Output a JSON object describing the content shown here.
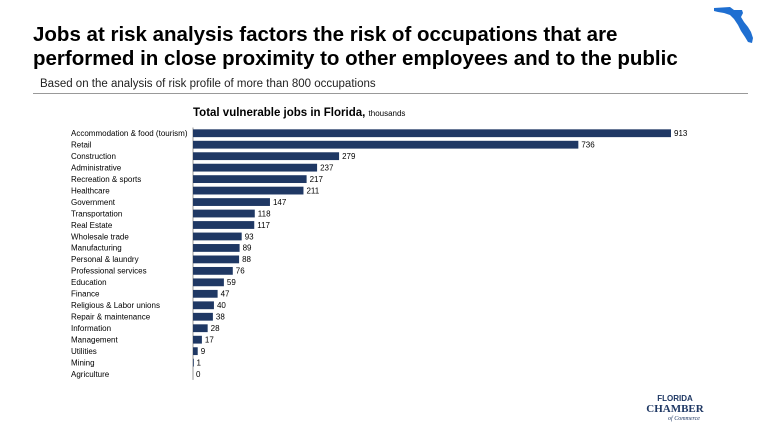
{
  "header": {
    "title": "Jobs at risk analysis factors the risk of occupations that are performed in close proximity to other employees and to the public",
    "subtitle": "Based on the analysis of risk profile of more than 800 occupations"
  },
  "logo": {
    "line1": "FLORIDA",
    "line2": "CHAMBER",
    "line3": "of Commerce"
  },
  "colors": {
    "bar": "#1f3864",
    "florida_map": "#1f6fd1"
  },
  "chart_data": {
    "type": "bar",
    "orientation": "horizontal",
    "title": "Total vulnerable jobs in Florida,",
    "title_unit": "thousands",
    "categories": [
      "Accommodation & food (tourism)",
      "Retail",
      "Construction",
      "Administrative",
      "Recreation & sports",
      "Healthcare",
      "Government",
      "Transportation",
      "Real Estate",
      "Wholesale trade",
      "Manufacturing",
      "Personal & laundry",
      "Professional services",
      "Education",
      "Finance",
      "Religious & Labor unions",
      "Repair & maintenance",
      "Information",
      "Management",
      "Utilities",
      "Mining",
      "Agriculture"
    ],
    "values": [
      913,
      736,
      279,
      237,
      217,
      211,
      147,
      118,
      117,
      93,
      89,
      88,
      76,
      59,
      47,
      40,
      38,
      28,
      17,
      9,
      1,
      0
    ],
    "xlim": [
      0,
      913
    ],
    "grid": false,
    "legend": "none"
  }
}
